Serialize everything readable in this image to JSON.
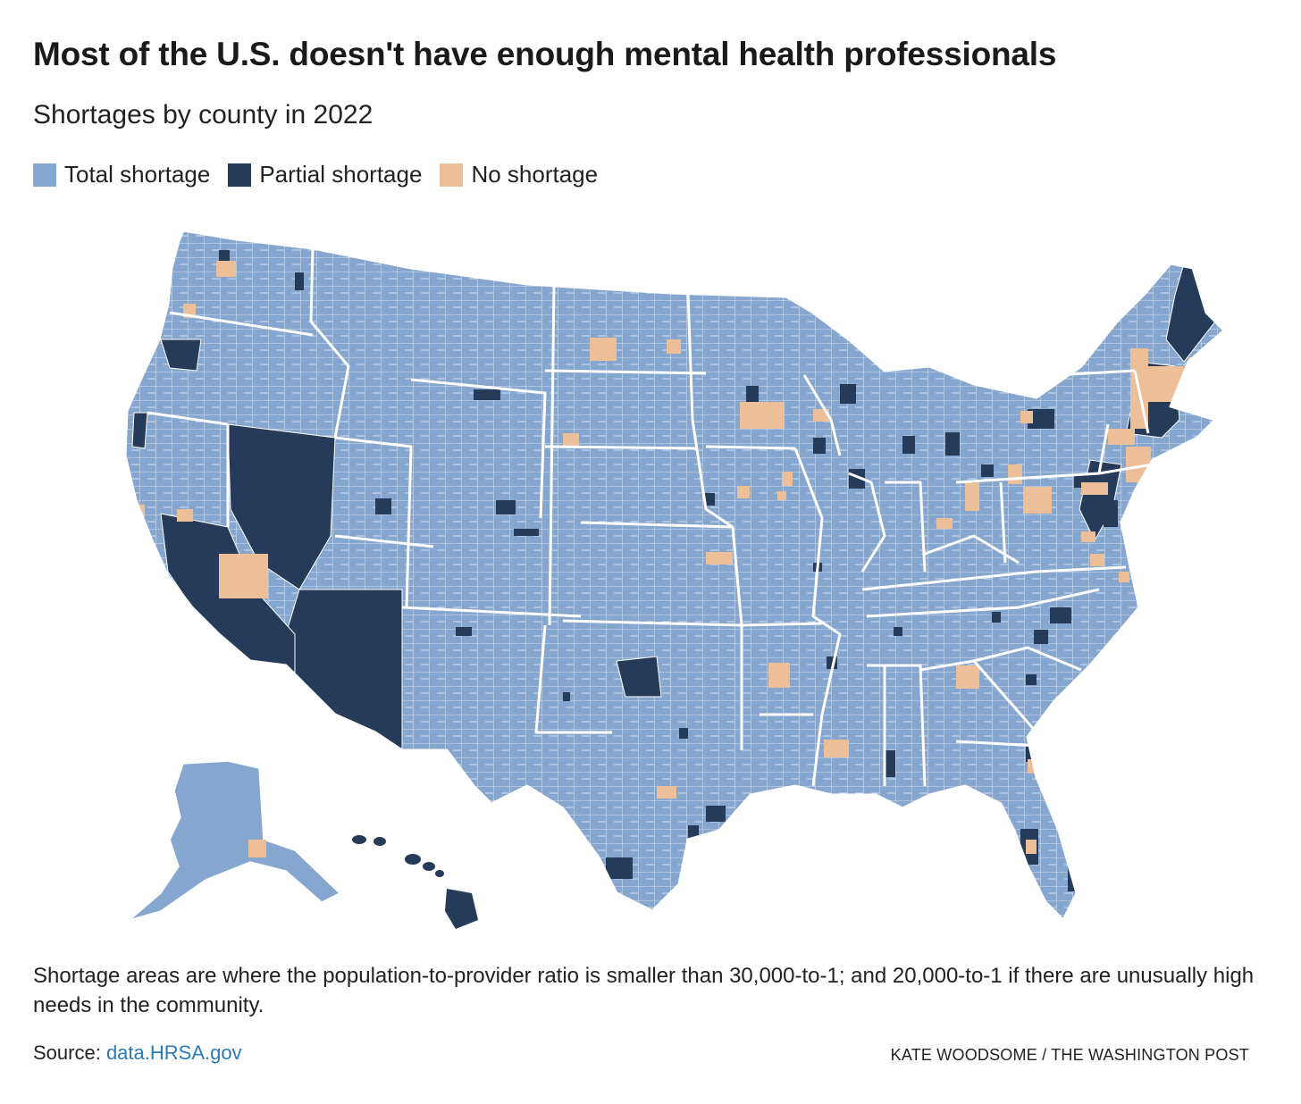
{
  "title": "Most of the U.S. doesn't have enough mental health professionals",
  "subtitle": "Shortages by county in 2022",
  "legend": [
    {
      "label": "Total shortage",
      "color": "#84a6cf"
    },
    {
      "label": "Partial shortage",
      "color": "#263a59"
    },
    {
      "label": "No shortage",
      "color": "#ecbf98"
    }
  ],
  "note": "Shortage areas are where the population-to-provider ratio is smaller than 30,000-to-1; and 20,000-to-1 if there are unusually high needs in the community.",
  "source": {
    "prefix": "Source: ",
    "link_text": "data.HRSA.gov"
  },
  "credit": "KATE WOODSOME / THE WASHINGTON POST",
  "colors": {
    "total": "#84a6cf",
    "partial": "#263a59",
    "none": "#ecbf98",
    "border": "#ffffff"
  }
}
